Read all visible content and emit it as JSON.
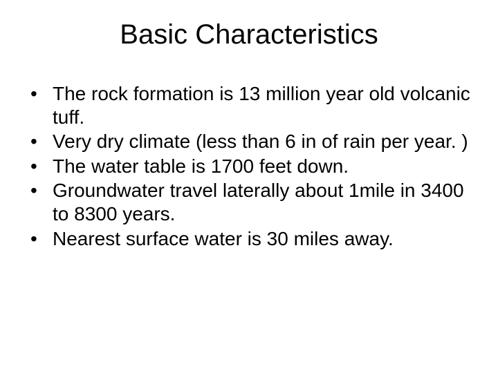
{
  "slide": {
    "title": "Basic Characteristics",
    "title_fontsize": 40,
    "body_fontsize": 28,
    "background_color": "#ffffff",
    "text_color": "#000000",
    "font_family": "Arial",
    "bullets": [
      "The rock formation is 13 million year old volcanic tuff.",
      "Very dry climate (less than 6 in of rain per year. )",
      "The water table is 1700 feet down.",
      "Groundwater travel laterally about 1mile in 3400 to 8300 years.",
      "Nearest surface water is 30 miles away."
    ]
  }
}
